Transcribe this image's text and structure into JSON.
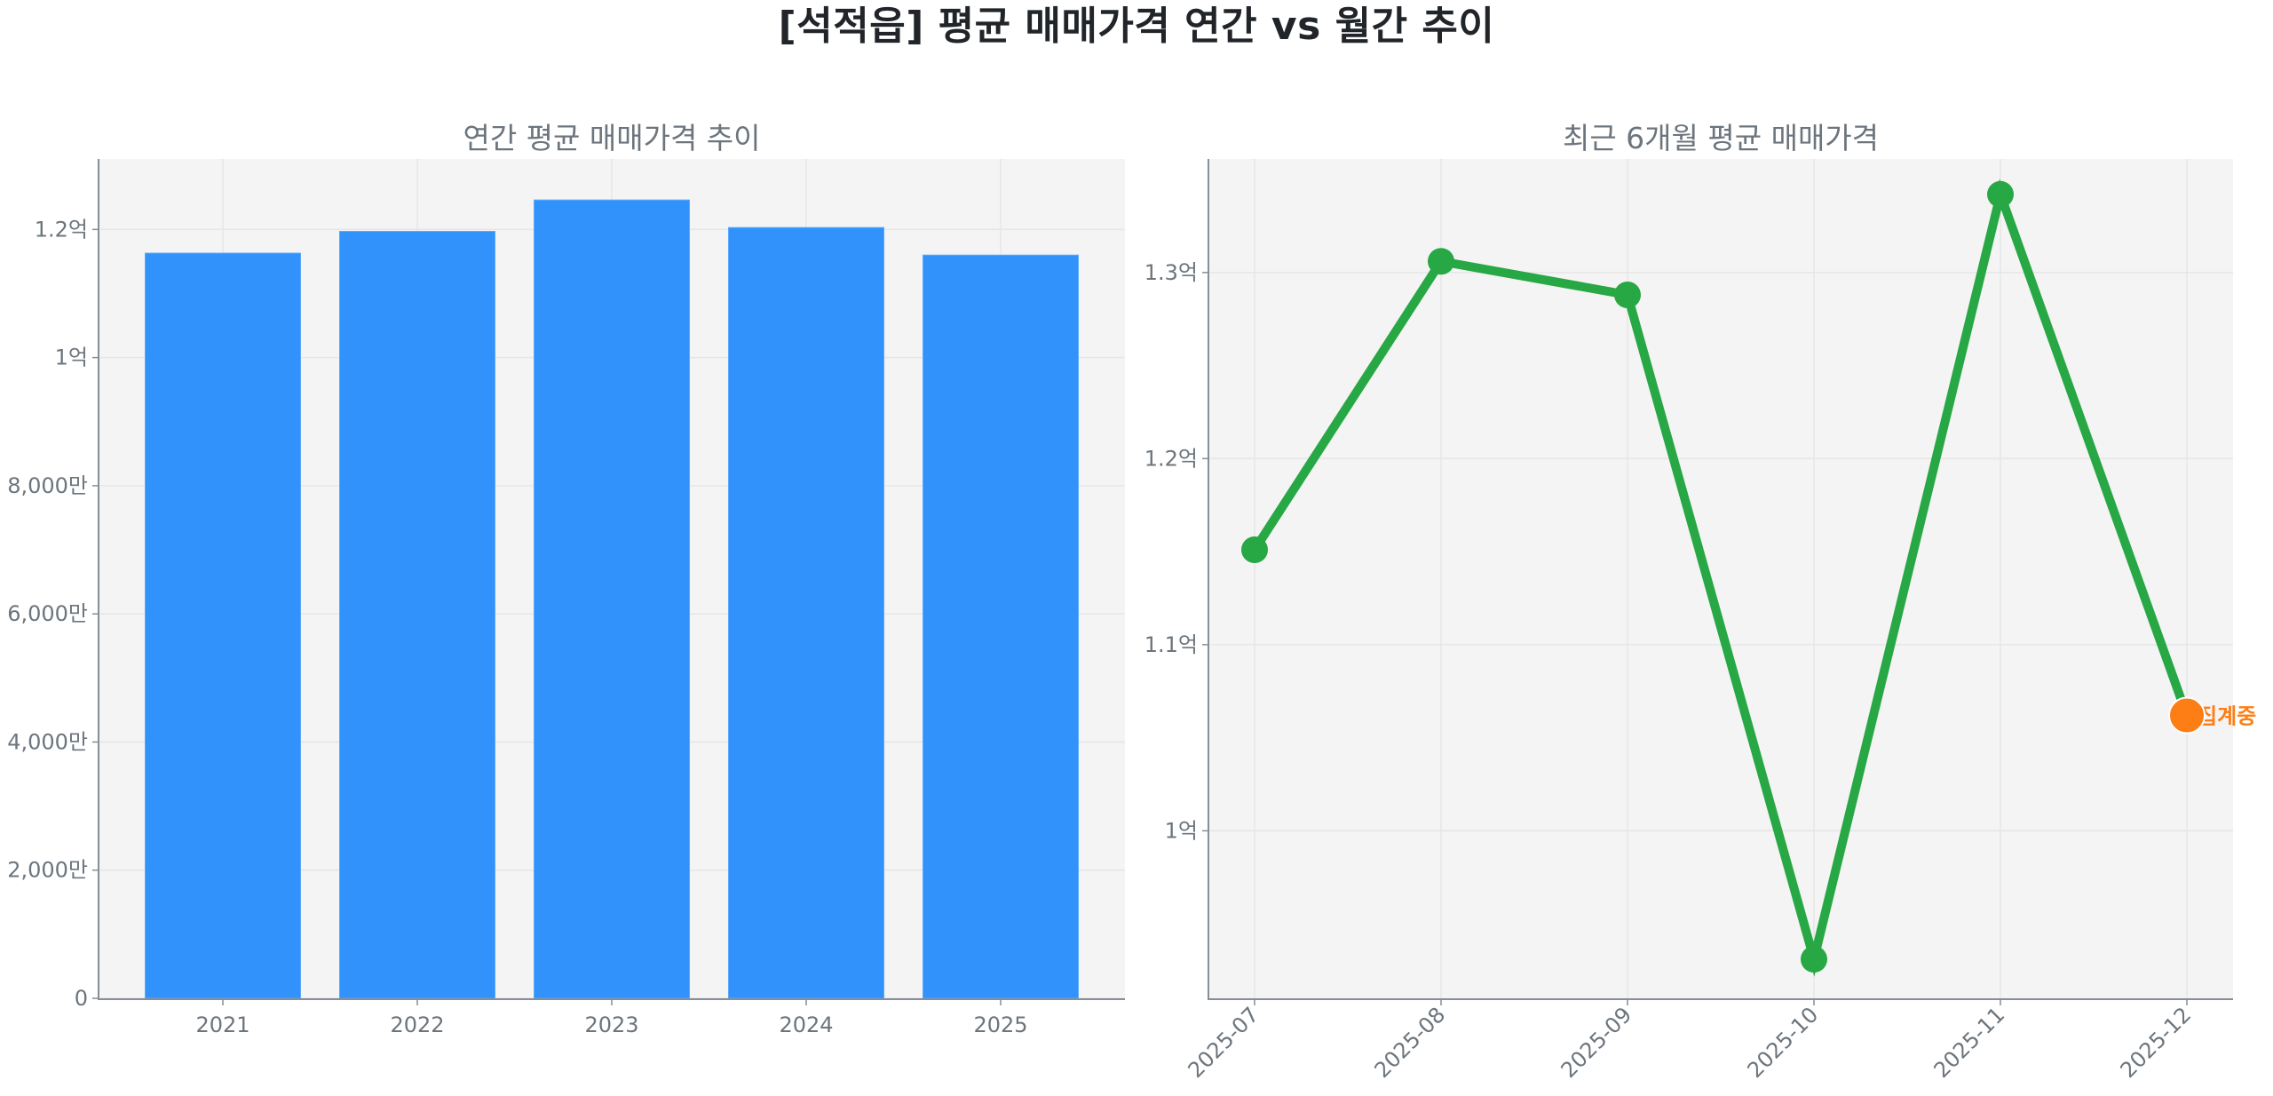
{
  "figure": {
    "title": "[석적읍] 평균 매매가격 연간 vs 월간 추이",
    "background": "#ffffff",
    "plot_background": "#f4f4f4",
    "grid_color": "#e6e6e6",
    "spine_color": "#868e96",
    "text_color": "#6c757d"
  },
  "left_chart": {
    "title": "연간 평균 매매가격 추이",
    "bar_color": "#3192fc",
    "y_ticks": [
      {
        "value": 0,
        "label": "0"
      },
      {
        "value": 20000000,
        "label": "2,000만"
      },
      {
        "value": 40000000,
        "label": "4,000만"
      },
      {
        "value": 60000000,
        "label": "6,000만"
      },
      {
        "value": 80000000,
        "label": "8,000만"
      },
      {
        "value": 100000000,
        "label": "1억"
      },
      {
        "value": 120000000,
        "label": "1.2억"
      }
    ]
  },
  "right_chart": {
    "title": "최근 6개월 평균 매매가격",
    "line_color": "#28a745",
    "highlight_color": "#fd7e14",
    "annotation": "집계중",
    "y_ticks": [
      {
        "value": 100000000,
        "label": "1억"
      },
      {
        "value": 110000000,
        "label": "1.1억"
      },
      {
        "value": 120000000,
        "label": "1.2억"
      },
      {
        "value": 130000000,
        "label": "1.3억"
      }
    ]
  },
  "chart_data": [
    {
      "type": "bar",
      "title": "연간 평균 매매가격 추이",
      "xlabel": "",
      "ylabel": "",
      "categories": [
        "2021",
        "2022",
        "2023",
        "2024",
        "2025"
      ],
      "values": [
        116300000,
        119700000,
        124600000,
        120300000,
        116000000
      ],
      "ylim": [
        0,
        131000000
      ],
      "grid": true,
      "legend": null
    },
    {
      "type": "line",
      "title": "최근 6개월 평균 매매가격",
      "xlabel": "",
      "ylabel": "",
      "x": [
        "2025-07",
        "2025-08",
        "2025-09",
        "2025-10",
        "2025-11",
        "2025-12"
      ],
      "values": [
        115100000,
        130600000,
        128800000,
        93100000,
        134200000,
        106200000
      ],
      "ylim": [
        91000000,
        136100000
      ],
      "grid": true,
      "legend": null,
      "annotations": [
        {
          "x": "2025-12",
          "text": "집계중",
          "note": "latest month highlighted in orange (in progress)"
        }
      ]
    }
  ]
}
